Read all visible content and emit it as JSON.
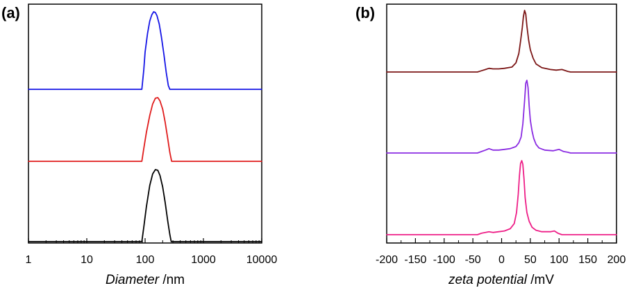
{
  "panel_labels": {
    "a": "(a)",
    "b": "(b)"
  },
  "axis_a": {
    "title_italic": "Diameter",
    "title_unit": " /nm"
  },
  "axis_b": {
    "title_italic": "zeta potential",
    "title_unit": " /mV"
  },
  "chart_data": [
    {
      "type": "line",
      "panel": "(a)",
      "xlabel": "Diameter /nm",
      "ylabel": "",
      "xscale": "log",
      "xlim": [
        1,
        10000
      ],
      "xticks": [
        1,
        10,
        100,
        1000,
        10000
      ],
      "xtick_labels": [
        "1",
        "10",
        "100",
        "1000",
        "10000"
      ],
      "yticks_shown": false,
      "layout": "stacked offset traces",
      "grid": false,
      "series": [
        {
          "color": "#1414e6",
          "x": [
            1,
            88,
            95,
            100,
            110,
            120,
            130,
            140,
            150,
            160,
            175,
            190,
            210,
            230,
            250,
            265,
            10000
          ],
          "y": [
            0,
            0,
            0.25,
            0.48,
            0.72,
            0.88,
            0.96,
            1.0,
            0.99,
            0.95,
            0.84,
            0.68,
            0.45,
            0.22,
            0.05,
            0,
            0
          ]
        },
        {
          "color": "#e01b1b",
          "x": [
            1,
            88,
            95,
            105,
            120,
            135,
            150,
            165,
            180,
            200,
            220,
            245,
            265,
            285,
            10000
          ],
          "y": [
            0,
            0,
            0.2,
            0.45,
            0.72,
            0.9,
            0.99,
            1.0,
            0.95,
            0.82,
            0.62,
            0.35,
            0.14,
            0,
            0
          ]
        },
        {
          "color": "#000000",
          "x": [
            1,
            88,
            95,
            105,
            120,
            135,
            150,
            165,
            180,
            200,
            220,
            245,
            265,
            280,
            10000
          ],
          "y": [
            0,
            0,
            0.2,
            0.48,
            0.78,
            0.94,
            1.0,
            0.99,
            0.92,
            0.76,
            0.55,
            0.28,
            0.1,
            0,
            0
          ]
        }
      ]
    },
    {
      "type": "line",
      "panel": "(b)",
      "xlabel": "zeta potential /mV",
      "ylabel": "",
      "xlim": [
        -200,
        200
      ],
      "xticks": [
        -200,
        -150,
        -100,
        -50,
        0,
        50,
        100,
        150,
        200
      ],
      "xtick_labels": [
        "-200",
        "-150",
        "-100",
        "-50",
        "0",
        "50",
        "100",
        "150",
        "200"
      ],
      "yticks_shown": false,
      "layout": "stacked offset traces",
      "grid": false,
      "series": [
        {
          "color": "#7b1515",
          "x": [
            -200,
            -42,
            -35,
            -28,
            -22,
            -15,
            -5,
            5,
            18,
            25,
            30,
            33,
            36,
            38,
            40,
            42,
            44,
            47,
            50,
            55,
            60,
            70,
            85,
            95,
            105,
            115,
            120,
            200
          ],
          "y": [
            0,
            0,
            0.02,
            0.04,
            0.06,
            0.05,
            0.05,
            0.06,
            0.08,
            0.15,
            0.3,
            0.5,
            0.72,
            0.9,
            1.0,
            0.94,
            0.75,
            0.52,
            0.36,
            0.22,
            0.13,
            0.07,
            0.04,
            0.03,
            0.04,
            0.01,
            0,
            0
          ]
        },
        {
          "color": "#8a2be2",
          "x": [
            -200,
            -42,
            -35,
            -28,
            -22,
            -15,
            -5,
            5,
            15,
            25,
            30,
            34,
            37,
            40,
            42,
            44,
            46,
            48,
            50,
            53,
            56,
            60,
            65,
            75,
            90,
            100,
            108,
            115,
            120,
            200
          ],
          "y": [
            0,
            0,
            0.02,
            0.04,
            0.06,
            0.04,
            0.04,
            0.05,
            0.06,
            0.09,
            0.14,
            0.22,
            0.4,
            0.72,
            0.96,
            1.0,
            0.9,
            0.65,
            0.45,
            0.3,
            0.2,
            0.12,
            0.07,
            0.04,
            0.03,
            0.05,
            0.02,
            0.01,
            0,
            0
          ]
        },
        {
          "color": "#ee1e87",
          "x": [
            -200,
            -42,
            -35,
            -28,
            -22,
            -15,
            -5,
            5,
            15,
            22,
            26,
            29,
            31,
            33,
            35,
            37,
            39,
            41,
            44,
            48,
            53,
            60,
            70,
            85,
            92,
            98,
            105,
            200
          ],
          "y": [
            0,
            0,
            0.02,
            0.03,
            0.04,
            0.03,
            0.04,
            0.05,
            0.08,
            0.15,
            0.3,
            0.55,
            0.8,
            0.96,
            1.0,
            0.95,
            0.75,
            0.5,
            0.3,
            0.18,
            0.1,
            0.06,
            0.04,
            0.04,
            0.05,
            0.02,
            0,
            0
          ]
        }
      ]
    }
  ]
}
